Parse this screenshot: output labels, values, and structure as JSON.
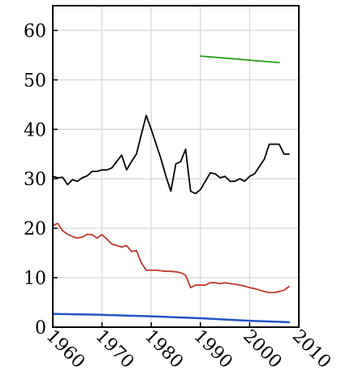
{
  "chart_data": {
    "type": "line",
    "title": "",
    "xlabel": "",
    "ylabel": "",
    "xlim": [
      1960,
      2010
    ],
    "ylim": [
      0,
      65
    ],
    "grid": true,
    "x_ticks": [
      1960,
      1970,
      1980,
      1990,
      2000,
      2010
    ],
    "x_tick_labels": [
      "1960",
      "1970",
      "1980",
      "1990",
      "2000",
      "2010"
    ],
    "y_ticks": [
      0,
      10,
      20,
      30,
      40,
      50,
      60
    ],
    "y_tick_labels": [
      "0",
      "10",
      "20",
      "30",
      "40",
      "50",
      "60"
    ],
    "series": [
      {
        "color": "#000000",
        "points": [
          [
            1960,
            30.5
          ],
          [
            1961,
            30.2
          ],
          [
            1962,
            30.3
          ],
          [
            1963,
            28.8
          ],
          [
            1964,
            29.8
          ],
          [
            1965,
            29.5
          ],
          [
            1966,
            30.2
          ],
          [
            1967,
            30.6
          ],
          [
            1968,
            31.5
          ],
          [
            1969,
            31.5
          ],
          [
            1970,
            31.8
          ],
          [
            1971,
            31.8
          ],
          [
            1972,
            32.2
          ],
          [
            1973,
            33.5
          ],
          [
            1974,
            34.8
          ],
          [
            1975,
            31.8
          ],
          [
            1976,
            33.5
          ],
          [
            1977,
            35.0
          ],
          [
            1978,
            39.0
          ],
          [
            1979,
            42.8
          ],
          [
            1980,
            40.0
          ],
          [
            1981,
            37.0
          ],
          [
            1982,
            34.0
          ],
          [
            1983,
            30.5
          ],
          [
            1984,
            27.5
          ],
          [
            1985,
            33.0
          ],
          [
            1986,
            33.5
          ],
          [
            1987,
            36.0
          ],
          [
            1988,
            27.5
          ],
          [
            1989,
            27.0
          ],
          [
            1990,
            27.8
          ],
          [
            1991,
            29.5
          ],
          [
            1992,
            31.2
          ],
          [
            1993,
            31.0
          ],
          [
            1994,
            30.2
          ],
          [
            1995,
            30.5
          ],
          [
            1996,
            29.5
          ],
          [
            1997,
            29.5
          ],
          [
            1998,
            30.0
          ],
          [
            1999,
            29.5
          ],
          [
            2000,
            30.5
          ],
          [
            2001,
            31.0
          ],
          [
            2002,
            32.5
          ],
          [
            2003,
            34.0
          ],
          [
            2004,
            37.0
          ],
          [
            2005,
            37.0
          ],
          [
            2006,
            37.0
          ],
          [
            2007,
            35.0
          ],
          [
            2008,
            35.0
          ]
        ]
      },
      {
        "color": "#c0392b",
        "points": [
          [
            1960,
            20.5
          ],
          [
            1961,
            21.0
          ],
          [
            1962,
            19.5
          ],
          [
            1963,
            18.8
          ],
          [
            1964,
            18.3
          ],
          [
            1965,
            18.0
          ],
          [
            1966,
            18.2
          ],
          [
            1967,
            18.8
          ],
          [
            1968,
            18.7
          ],
          [
            1969,
            18.0
          ],
          [
            1970,
            18.7
          ],
          [
            1971,
            17.8
          ],
          [
            1972,
            16.8
          ],
          [
            1973,
            16.5
          ],
          [
            1974,
            16.2
          ],
          [
            1975,
            16.5
          ],
          [
            1976,
            15.3
          ],
          [
            1977,
            15.5
          ],
          [
            1978,
            13.0
          ],
          [
            1979,
            11.5
          ],
          [
            1980,
            11.5
          ],
          [
            1981,
            11.5
          ],
          [
            1982,
            11.4
          ],
          [
            1983,
            11.3
          ],
          [
            1984,
            11.3
          ],
          [
            1985,
            11.2
          ],
          [
            1986,
            11.0
          ],
          [
            1987,
            10.5
          ],
          [
            1988,
            8.0
          ],
          [
            1989,
            8.5
          ],
          [
            1990,
            8.5
          ],
          [
            1991,
            8.5
          ],
          [
            1992,
            9.0
          ],
          [
            1993,
            9.0
          ],
          [
            1994,
            8.8
          ],
          [
            1995,
            9.0
          ],
          [
            1996,
            8.8
          ],
          [
            1997,
            8.7
          ],
          [
            1998,
            8.5
          ],
          [
            1999,
            8.3
          ],
          [
            2000,
            8.0
          ],
          [
            2001,
            7.8
          ],
          [
            2002,
            7.5
          ],
          [
            2003,
            7.2
          ],
          [
            2004,
            7.0
          ],
          [
            2005,
            7.0
          ],
          [
            2006,
            7.2
          ],
          [
            2007,
            7.5
          ],
          [
            2008,
            8.2
          ]
        ]
      },
      {
        "color": "#2a9d1f",
        "points": [
          [
            1990,
            54.8
          ],
          [
            2006,
            53.5
          ]
        ]
      },
      {
        "color": "#2554c7",
        "points": [
          [
            1960,
            2.7
          ],
          [
            1970,
            2.5
          ],
          [
            1980,
            2.2
          ],
          [
            1990,
            1.8
          ],
          [
            2000,
            1.3
          ],
          [
            2008,
            1.0
          ]
        ]
      }
    ]
  }
}
